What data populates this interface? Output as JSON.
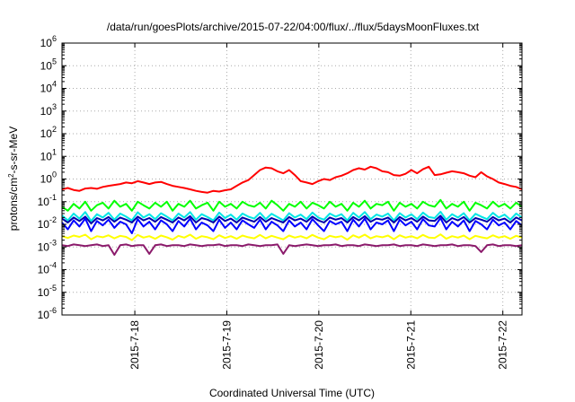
{
  "chart_data": {
    "type": "line",
    "title": "/data/run/goesPlots/archive/2015-07-22/04:00/flux/../flux/5daysMoonFluxes.txt",
    "xlabel": "Coordinated Universal Time (UTC)",
    "ylabel": {
      "main": "protons/cm",
      "sup": "2",
      "rest": "-s-sr-MeV"
    },
    "yscale": "log",
    "ylim": [
      -6,
      6
    ],
    "xlim": [
      "2015-07-17 05:00",
      "2015-07-22 05:00"
    ],
    "x_ticks": [
      "2015-7-18",
      "2015-7-19",
      "2015-7-20",
      "2015-7-21",
      "2015-7-22"
    ],
    "y_ticks": [
      {
        "base": "10",
        "exp": "-6"
      },
      {
        "base": "10",
        "exp": "-5"
      },
      {
        "base": "10",
        "exp": "-4"
      },
      {
        "base": "10",
        "exp": "-3"
      },
      {
        "base": "10",
        "exp": "-2"
      },
      {
        "base": "10",
        "exp": "-1"
      },
      {
        "base": "10",
        "exp": "0"
      },
      {
        "base": "10",
        "exp": "1"
      },
      {
        "base": "10",
        "exp": "2"
      },
      {
        "base": "10",
        "exp": "3"
      },
      {
        "base": "10",
        "exp": "4"
      },
      {
        "base": "10",
        "exp": "5"
      },
      {
        "base": "10",
        "exp": "6"
      }
    ],
    "grid": true,
    "legend": "none",
    "series": [
      {
        "color": "#ff0000",
        "values": [
          0.35,
          0.4,
          0.33,
          0.3,
          0.38,
          0.4,
          0.37,
          0.45,
          0.5,
          0.55,
          0.6,
          0.7,
          0.65,
          0.8,
          0.7,
          0.6,
          0.7,
          0.75,
          0.6,
          0.5,
          0.45,
          0.4,
          0.35,
          0.3,
          0.27,
          0.25,
          0.3,
          0.28,
          0.32,
          0.35,
          0.5,
          0.7,
          0.9,
          1.5,
          2.5,
          3.2,
          3.0,
          2.2,
          1.8,
          2.5,
          1.5,
          0.8,
          0.7,
          0.6,
          0.8,
          1.0,
          0.9,
          1.2,
          1.4,
          1.8,
          2.5,
          3.0,
          2.6,
          3.5,
          3.0,
          2.2,
          2.0,
          1.5,
          1.4,
          1.7,
          2.5,
          1.8,
          2.7,
          3.5,
          1.5,
          1.6,
          1.9,
          2.2,
          2.0,
          1.8,
          1.4,
          1.2,
          2.0,
          1.3,
          1.0,
          0.7,
          0.6,
          0.5,
          0.45,
          0.35
        ]
      },
      {
        "color": "#00ff00",
        "values": [
          0.06,
          0.04,
          0.08,
          0.05,
          0.1,
          0.04,
          0.07,
          0.09,
          0.05,
          0.11,
          0.06,
          0.08,
          0.04,
          0.1,
          0.07,
          0.05,
          0.09,
          0.06,
          0.1,
          0.04,
          0.08,
          0.06,
          0.11,
          0.05,
          0.07,
          0.09,
          0.04,
          0.1,
          0.06,
          0.08,
          0.05,
          0.1,
          0.07,
          0.06,
          0.09,
          0.05,
          0.11,
          0.07,
          0.04,
          0.08,
          0.06,
          0.1,
          0.05,
          0.09,
          0.07,
          0.05,
          0.1,
          0.06,
          0.08,
          0.04,
          0.09,
          0.06,
          0.11,
          0.05,
          0.08,
          0.07,
          0.1,
          0.04,
          0.09,
          0.06,
          0.08,
          0.05,
          0.1,
          0.07,
          0.06,
          0.12,
          0.05,
          0.08,
          0.06,
          0.1,
          0.04,
          0.09,
          0.07,
          0.05,
          0.1,
          0.06,
          0.08,
          0.05,
          0.09,
          0.06
        ]
      },
      {
        "color": "#00e5e5",
        "values": [
          0.025,
          0.015,
          0.03,
          0.018,
          0.035,
          0.014,
          0.028,
          0.02,
          0.032,
          0.016,
          0.03,
          0.022,
          0.015,
          0.034,
          0.02,
          0.028,
          0.017,
          0.031,
          0.022,
          0.015,
          0.03,
          0.02,
          0.035,
          0.016,
          0.028,
          0.021,
          0.015,
          0.033,
          0.019,
          0.027,
          0.016,
          0.03,
          0.022,
          0.018,
          0.032,
          0.017,
          0.029,
          0.021,
          0.015,
          0.031,
          0.02,
          0.027,
          0.017,
          0.033,
          0.02,
          0.016,
          0.03,
          0.022,
          0.028,
          0.015,
          0.032,
          0.02,
          0.035,
          0.017,
          0.027,
          0.022,
          0.03,
          0.015,
          0.031,
          0.02,
          0.028,
          0.017,
          0.033,
          0.021,
          0.019,
          0.036,
          0.016,
          0.028,
          0.02,
          0.031,
          0.015,
          0.029,
          0.022,
          0.017,
          0.032,
          0.02,
          0.027,
          0.016,
          0.03,
          0.02
        ]
      },
      {
        "color": "#0000aa",
        "values": [
          0.018,
          0.012,
          0.02,
          0.014,
          0.022,
          0.011,
          0.019,
          0.015,
          0.021,
          0.013,
          0.02,
          0.016,
          0.012,
          0.022,
          0.015,
          0.019,
          0.013,
          0.021,
          0.016,
          0.012,
          0.02,
          0.015,
          0.023,
          0.012,
          0.019,
          0.016,
          0.012,
          0.022,
          0.014,
          0.018,
          0.012,
          0.02,
          0.016,
          0.013,
          0.021,
          0.013,
          0.019,
          0.015,
          0.012,
          0.021,
          0.015,
          0.018,
          0.013,
          0.022,
          0.015,
          0.012,
          0.02,
          0.016,
          0.019,
          0.012,
          0.021,
          0.015,
          0.023,
          0.013,
          0.018,
          0.016,
          0.02,
          0.012,
          0.021,
          0.015,
          0.019,
          0.013,
          0.022,
          0.015,
          0.014,
          0.024,
          0.012,
          0.019,
          0.015,
          0.021,
          0.012,
          0.019,
          0.016,
          0.013,
          0.021,
          0.015,
          0.018,
          0.012,
          0.02,
          0.015
        ]
      },
      {
        "color": "#0000ff",
        "values": [
          0.012,
          0.006,
          0.015,
          0.008,
          0.018,
          0.005,
          0.014,
          0.009,
          0.016,
          0.007,
          0.013,
          0.01,
          0.004,
          0.017,
          0.008,
          0.013,
          0.006,
          0.015,
          0.01,
          0.005,
          0.014,
          0.008,
          0.018,
          0.006,
          0.012,
          0.009,
          0.005,
          0.016,
          0.007,
          0.012,
          0.006,
          0.015,
          0.01,
          0.007,
          0.016,
          0.006,
          0.013,
          0.009,
          0.005,
          0.015,
          0.008,
          0.012,
          0.006,
          0.017,
          0.009,
          0.005,
          0.014,
          0.01,
          0.013,
          0.005,
          0.016,
          0.008,
          0.018,
          0.006,
          0.012,
          0.01,
          0.015,
          0.005,
          0.016,
          0.009,
          0.013,
          0.006,
          0.017,
          0.009,
          0.008,
          0.019,
          0.006,
          0.013,
          0.008,
          0.015,
          0.005,
          0.014,
          0.01,
          0.006,
          0.016,
          0.009,
          0.012,
          0.006,
          0.014,
          0.009
        ]
      },
      {
        "color": "#ffff00",
        "values": [
          0.003,
          0.0025,
          0.0032,
          0.0028,
          0.0035,
          0.0022,
          0.003,
          0.0027,
          0.0033,
          0.0024,
          0.0031,
          0.0028,
          0.002,
          0.0034,
          0.0026,
          0.003,
          0.0023,
          0.0032,
          0.0027,
          0.0021,
          0.0031,
          0.0026,
          0.0035,
          0.0023,
          0.003,
          0.0027,
          0.0022,
          0.0033,
          0.0025,
          0.003,
          0.0023,
          0.0032,
          0.0027,
          0.0024,
          0.0034,
          0.0024,
          0.0031,
          0.0026,
          0.0022,
          0.0032,
          0.0026,
          0.003,
          0.0024,
          0.0034,
          0.0026,
          0.0022,
          0.0031,
          0.0027,
          0.003,
          0.0021,
          0.0033,
          0.0026,
          0.0035,
          0.0024,
          0.003,
          0.0027,
          0.0032,
          0.0022,
          0.0033,
          0.0026,
          0.003,
          0.0024,
          0.0034,
          0.0026,
          0.0025,
          0.0036,
          0.0023,
          0.003,
          0.0026,
          0.0032,
          0.0022,
          0.0031,
          0.0027,
          0.0024,
          0.0033,
          0.0026,
          0.003,
          0.0023,
          0.0031,
          0.0026
        ]
      },
      {
        "color": "#8b1a6b",
        "values": [
          0.0012,
          0.0011,
          0.0013,
          0.0012,
          0.0011,
          0.0012,
          0.0013,
          0.0011,
          0.0012,
          0.00045,
          0.0012,
          0.0013,
          0.0011,
          0.0012,
          0.0012,
          0.0005,
          0.0012,
          0.0013,
          0.0011,
          0.0012,
          0.0012,
          0.0011,
          0.0013,
          0.0012,
          0.0011,
          0.0012,
          0.0012,
          0.0013,
          0.0011,
          0.0012,
          0.0012,
          0.0011,
          0.0013,
          0.0012,
          0.0011,
          0.0012,
          0.0012,
          0.0013,
          0.0005,
          0.0012,
          0.0011,
          0.0012,
          0.0013,
          0.0012,
          0.0011,
          0.0012,
          0.0012,
          0.0013,
          0.0011,
          0.0012,
          0.0012,
          0.0011,
          0.0013,
          0.0012,
          0.0011,
          0.0012,
          0.0012,
          0.0013,
          0.0011,
          0.0012,
          0.0012,
          0.0011,
          0.0013,
          0.0012,
          0.0011,
          0.0012,
          0.0012,
          0.0013,
          0.0011,
          0.0012,
          0.0012,
          0.0011,
          0.0006,
          0.0012,
          0.0013,
          0.0011,
          0.0012,
          0.0012,
          0.0011,
          0.0012
        ]
      }
    ]
  }
}
